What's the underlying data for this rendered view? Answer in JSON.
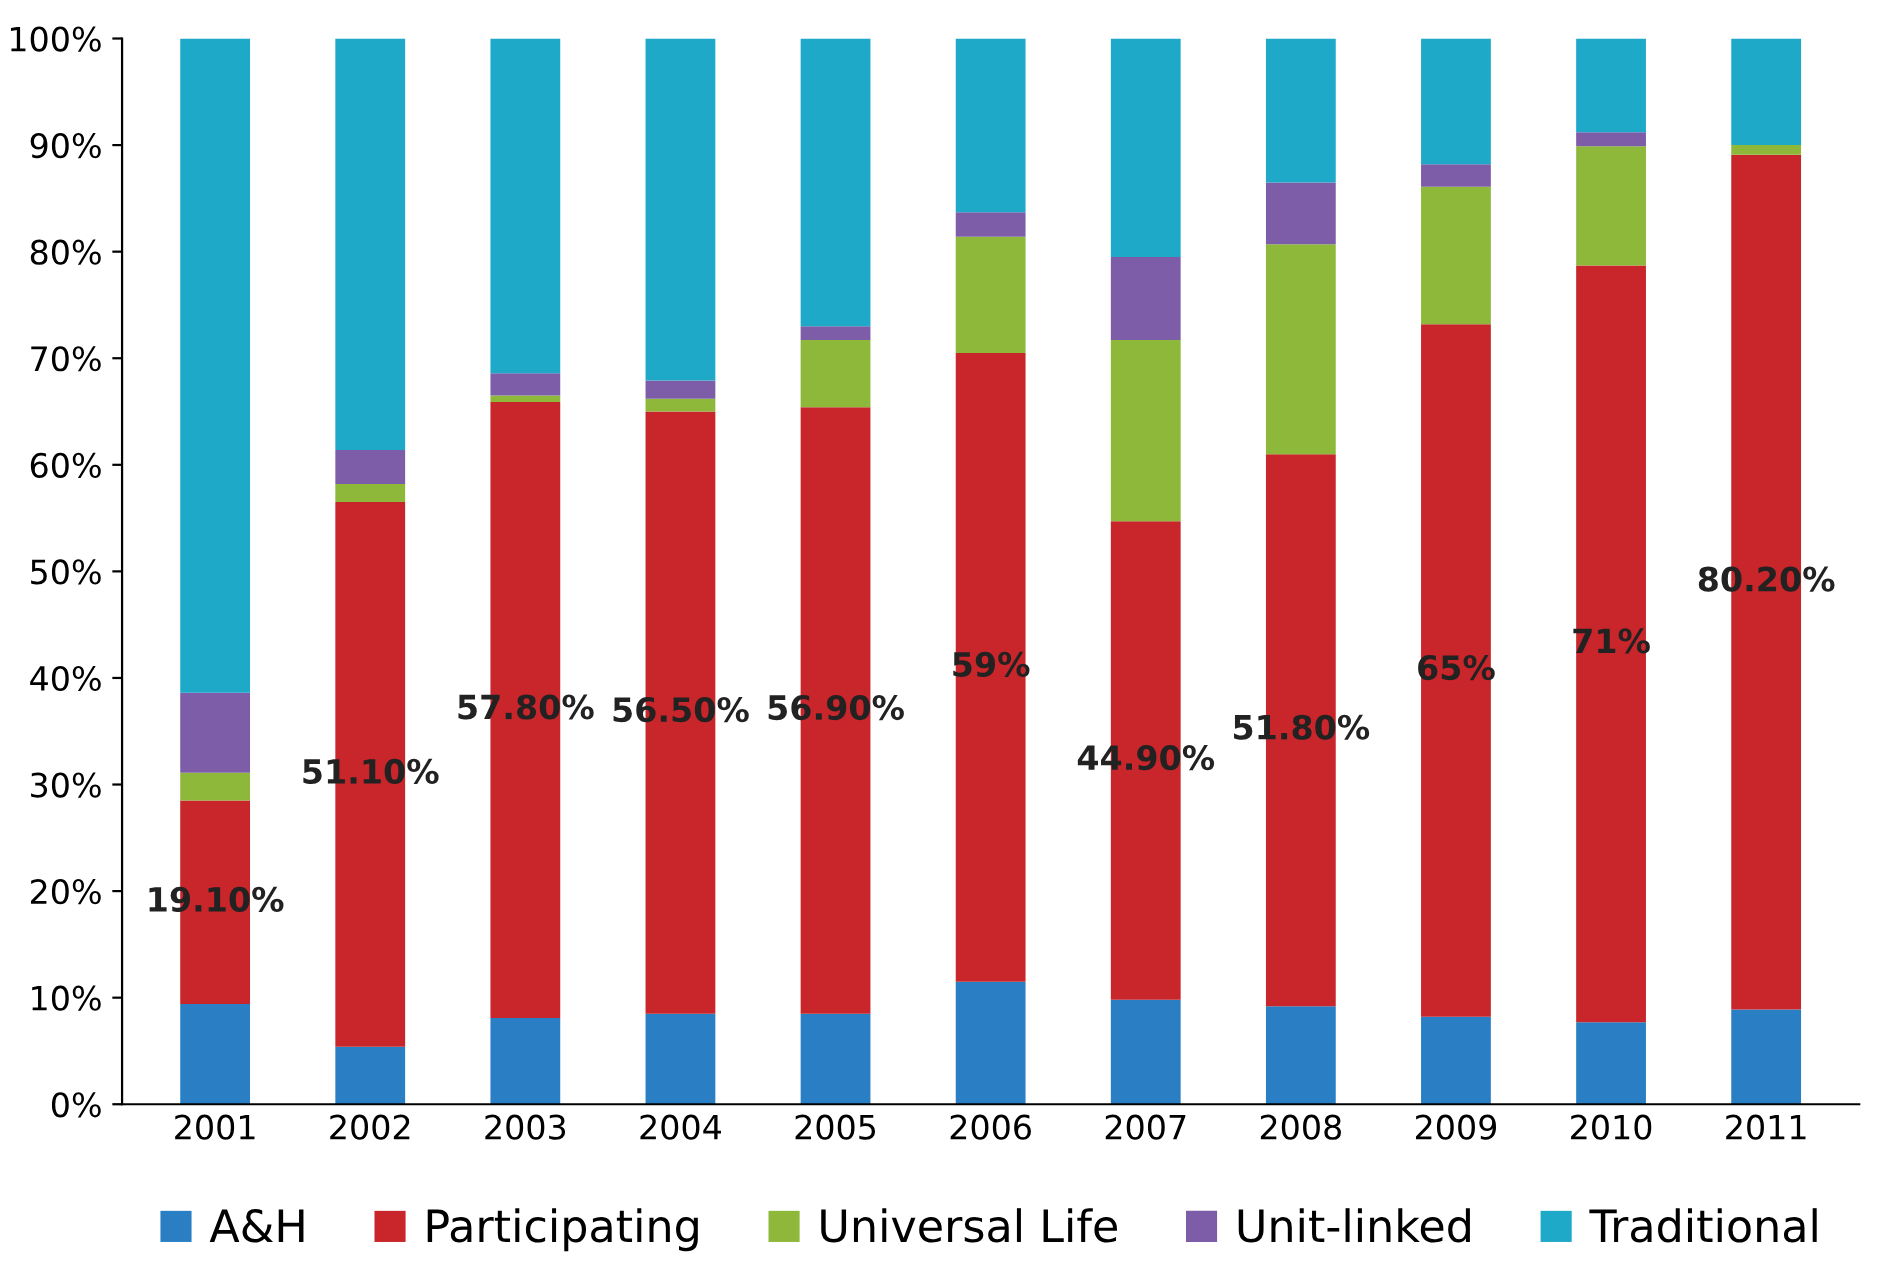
{
  "chart_data": {
    "type": "bar",
    "stacked": true,
    "categories": [
      "2001",
      "2002",
      "2003",
      "2004",
      "2005",
      "2006",
      "2007",
      "2008",
      "2009",
      "2010",
      "2011"
    ],
    "series": [
      {
        "name": "A&H",
        "color": "#2a7fc4",
        "values": [
          9.4,
          5.4,
          8.1,
          8.5,
          8.5,
          11.5,
          9.8,
          9.2,
          8.2,
          7.7,
          8.9
        ]
      },
      {
        "name": "Participating",
        "color": "#c8262a",
        "values": [
          19.1,
          51.1,
          57.8,
          56.5,
          56.9,
          59,
          44.9,
          51.8,
          65,
          71,
          80.2
        ],
        "value_labels": [
          "19.10%",
          "51.10%",
          "57.80%",
          "56.50%",
          "56.90%",
          "59%",
          "44.90%",
          "51.80%",
          "65%",
          "71%",
          "80.20%"
        ]
      },
      {
        "name": "Universal Life",
        "color": "#8db83a",
        "values": [
          2.6,
          1.7,
          0.6,
          1.2,
          6.3,
          10.9,
          17.0,
          19.7,
          12.9,
          11.2,
          0.9
        ]
      },
      {
        "name": "Unit-linked",
        "color": "#7d5ca8",
        "values": [
          7.5,
          3.2,
          2.1,
          1.7,
          1.3,
          2.3,
          7.8,
          5.8,
          2.1,
          1.3,
          0
        ]
      },
      {
        "name": "Traditional",
        "color": "#1fa9c9",
        "values": [
          61.4,
          38.6,
          31.4,
          32.1,
          27.0,
          16.3,
          20.5,
          13.5,
          11.8,
          8.8,
          10.0
        ]
      }
    ],
    "ylim": [
      0,
      100
    ],
    "yticks": [
      {
        "value": 0,
        "label": "0%"
      },
      {
        "value": 10,
        "label": "10%"
      },
      {
        "value": 20,
        "label": "20%"
      },
      {
        "value": 30,
        "label": "30%"
      },
      {
        "value": 40,
        "label": "40%"
      },
      {
        "value": 50,
        "label": "50%"
      },
      {
        "value": 60,
        "label": "60%"
      },
      {
        "value": 70,
        "label": "70%"
      },
      {
        "value": 80,
        "label": "80%"
      },
      {
        "value": 90,
        "label": "90%"
      },
      {
        "value": 100,
        "label": "100%"
      }
    ],
    "grid": false,
    "legend": "bottom"
  }
}
